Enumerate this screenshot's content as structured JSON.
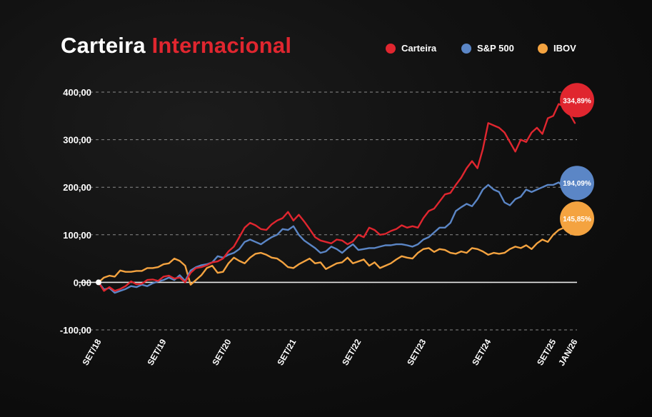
{
  "header": {
    "title_main": "Carteira",
    "title_accent": "Internacional"
  },
  "colors": {
    "carteira": "#e0262f",
    "sp500": "#5b86c6",
    "ibov": "#f4a340"
  },
  "chart_data": {
    "type": "line",
    "title": "Carteira Internacional",
    "ylim": [
      -100,
      400
    ],
    "yticks": [
      "400,00",
      "300,00",
      "200,00",
      "100,00",
      "0,00",
      "-100,00"
    ],
    "ytick_values": [
      400,
      300,
      200,
      100,
      0,
      -100
    ],
    "xticks": [
      "SET/18",
      "SET/19",
      "SET/20",
      "SET/21",
      "SET/22",
      "SET/23",
      "SET/24",
      "SET/25",
      "JAN/26"
    ],
    "xtick_values": [
      0,
      12,
      24,
      36,
      48,
      60,
      72,
      84,
      88
    ],
    "legend_position": "top-right",
    "grid": "horizontal-dashed",
    "series": [
      {
        "name": "Carteira",
        "color": "#e0262f",
        "final_label": "334,89%",
        "values": [
          0,
          -18,
          -10,
          -18,
          -14,
          -8,
          2,
          -4,
          -3,
          5,
          6,
          3,
          12,
          14,
          8,
          10,
          0,
          20,
          30,
          32,
          36,
          42,
          44,
          50,
          65,
          75,
          95,
          115,
          125,
          120,
          112,
          110,
          122,
          130,
          135,
          148,
          130,
          142,
          128,
          112,
          95,
          88,
          85,
          82,
          90,
          88,
          80,
          86,
          100,
          95,
          115,
          110,
          100,
          102,
          108,
          112,
          120,
          115,
          118,
          115,
          135,
          150,
          155,
          170,
          185,
          188,
          205,
          220,
          240,
          255,
          240,
          280,
          335,
          330,
          325,
          315,
          295,
          275,
          300,
          295,
          315,
          325,
          312,
          345,
          350,
          375,
          370,
          355,
          335
        ]
      },
      {
        "name": "S&P 500",
        "color": "#5b86c6",
        "final_label": "194,09%",
        "values": [
          0,
          -15,
          -12,
          -22,
          -18,
          -14,
          -8,
          -10,
          -5,
          -8,
          -2,
          2,
          5,
          10,
          5,
          15,
          3,
          25,
          32,
          36,
          38,
          42,
          55,
          52,
          58,
          62,
          70,
          85,
          90,
          85,
          80,
          88,
          95,
          100,
          112,
          110,
          118,
          100,
          88,
          80,
          72,
          62,
          65,
          75,
          70,
          62,
          72,
          80,
          68,
          70,
          72,
          72,
          75,
          78,
          78,
          80,
          80,
          78,
          75,
          80,
          90,
          95,
          105,
          115,
          115,
          125,
          150,
          158,
          165,
          160,
          175,
          195,
          205,
          195,
          190,
          168,
          162,
          175,
          180,
          195,
          190,
          195,
          200,
          205,
          205,
          210,
          200,
          195,
          194
        ]
      },
      {
        "name": "IBOV",
        "color": "#f4a340",
        "final_label": "145,85%",
        "values": [
          0,
          10,
          14,
          12,
          25,
          22,
          22,
          24,
          24,
          30,
          30,
          32,
          38,
          40,
          50,
          45,
          35,
          -5,
          5,
          15,
          30,
          35,
          20,
          22,
          40,
          52,
          45,
          40,
          52,
          60,
          62,
          58,
          52,
          50,
          42,
          32,
          30,
          38,
          44,
          50,
          40,
          42,
          28,
          34,
          40,
          42,
          52,
          40,
          44,
          48,
          35,
          42,
          30,
          35,
          40,
          48,
          55,
          52,
          50,
          62,
          70,
          72,
          64,
          70,
          68,
          62,
          60,
          65,
          62,
          72,
          70,
          65,
          58,
          62,
          60,
          62,
          70,
          75,
          72,
          78,
          70,
          82,
          90,
          85,
          100,
          110,
          115,
          130,
          146
        ]
      }
    ]
  }
}
